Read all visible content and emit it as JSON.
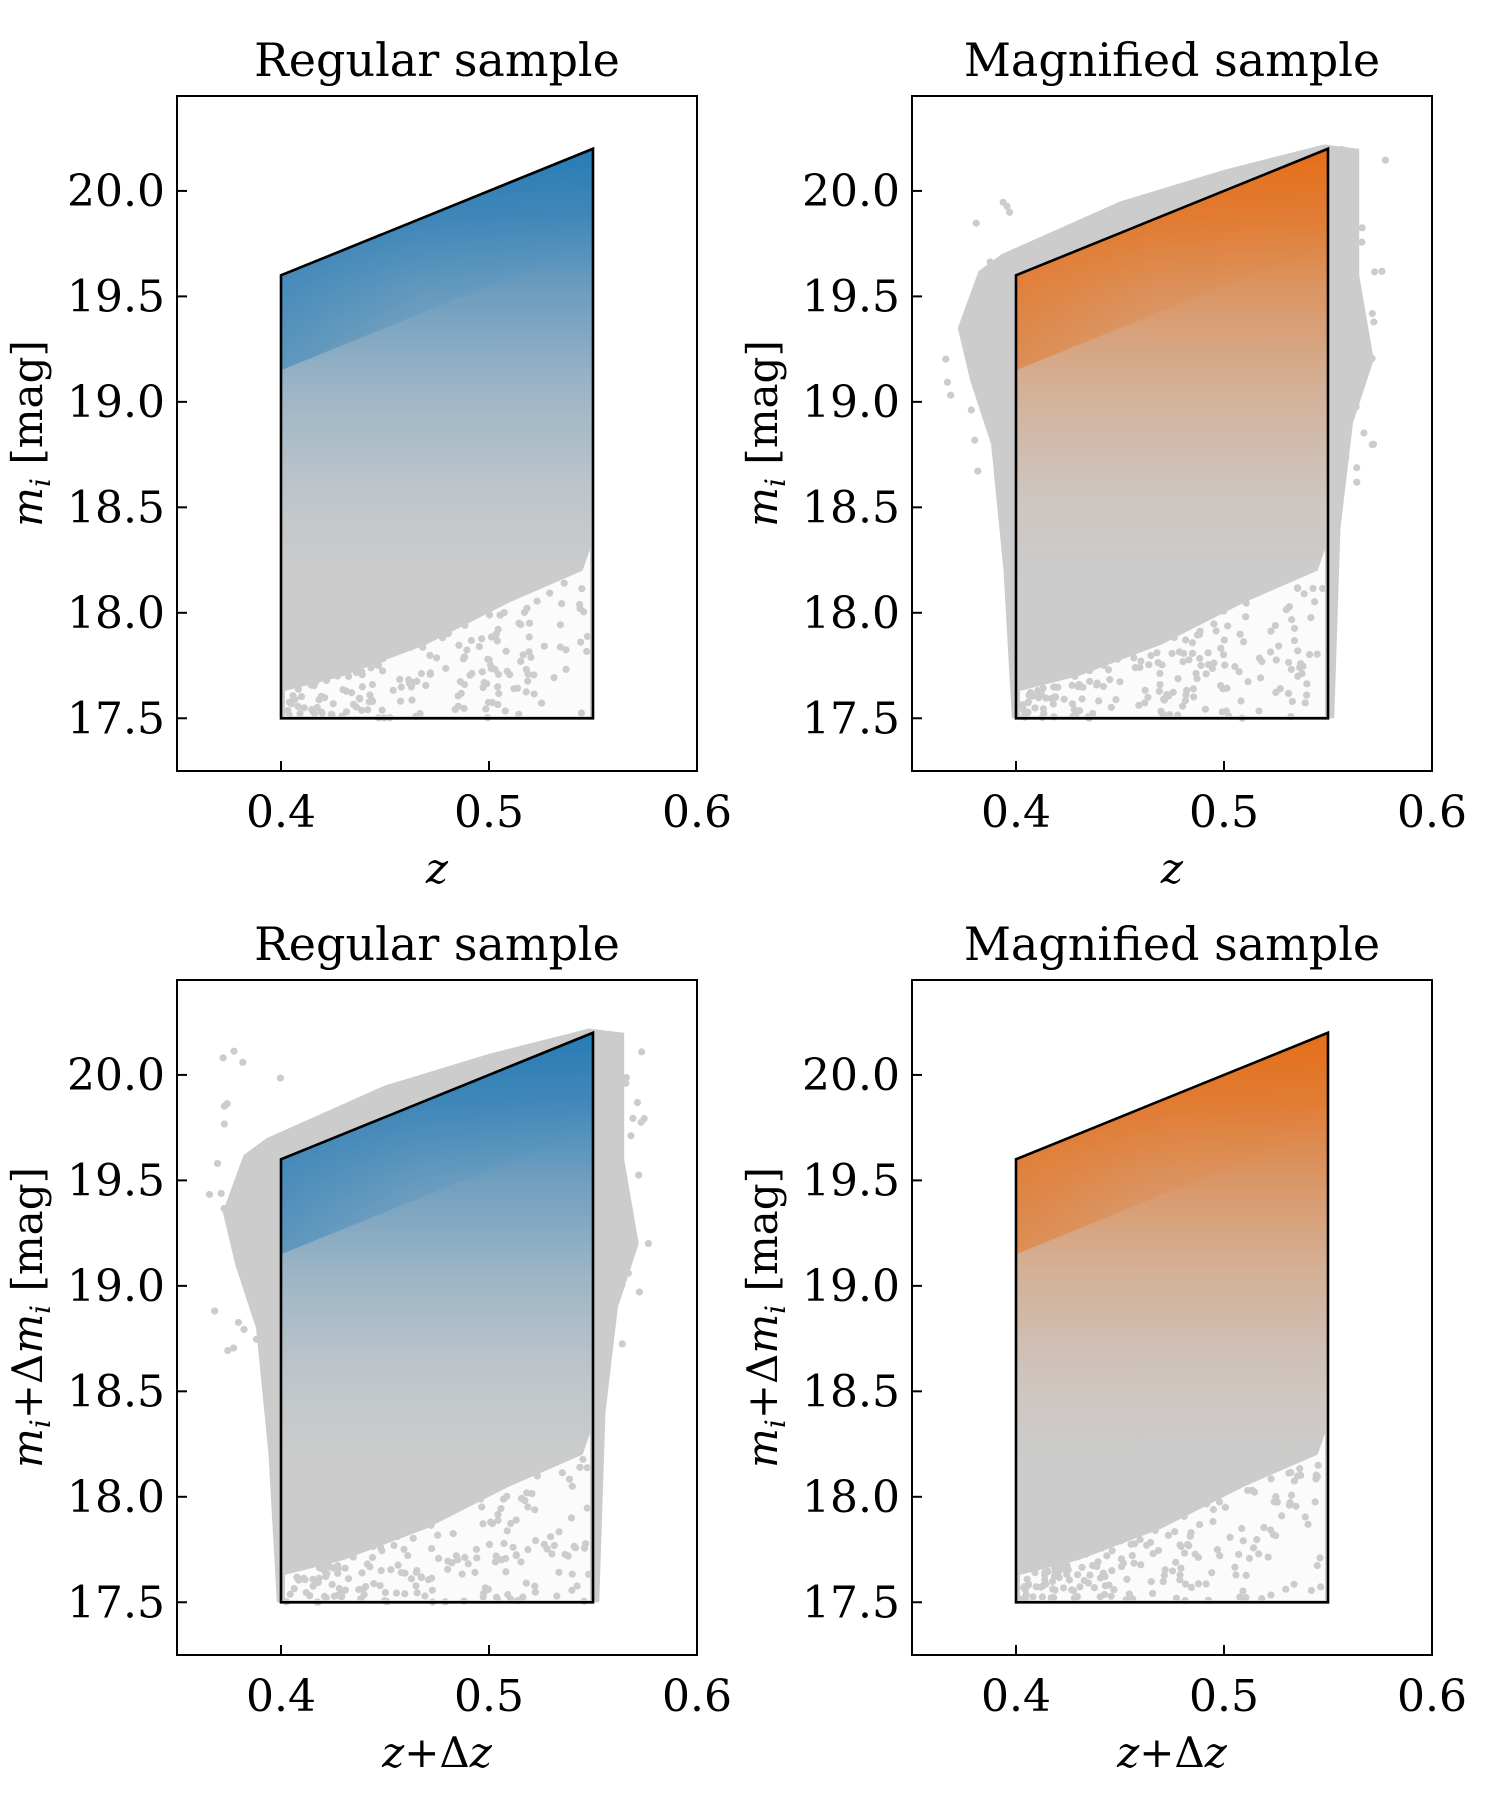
{
  "chart_data": [
    {
      "type": "scatter",
      "title": "Regular sample",
      "xlabel": "z",
      "ylabel": "m_i [mag]",
      "xlabel_parts": {
        "main": "z"
      },
      "ylabel_parts": {
        "var": "m",
        "sub": "i",
        "unit": " [mag]"
      },
      "xlim": [
        0.35,
        0.6
      ],
      "ylim": [
        17.25,
        20.45
      ],
      "xticks": [
        "0.4",
        "0.5",
        "0.6"
      ],
      "xtick_values": [
        0.4,
        0.5,
        0.6
      ],
      "yticks": [
        "17.5",
        "18.0",
        "18.5",
        "19.0",
        "19.5",
        "20.0"
      ],
      "ytick_values": [
        17.5,
        18.0,
        18.5,
        19.0,
        19.5,
        20.0
      ],
      "selection_polygon": [
        [
          0.4,
          17.5
        ],
        [
          0.4,
          19.6
        ],
        [
          0.55,
          20.2
        ],
        [
          0.55,
          17.5
        ]
      ],
      "density_color": "#1f77b4",
      "background_color": "#cccccc",
      "spill": 0.0
    },
    {
      "type": "scatter",
      "title": "Magnified sample",
      "xlabel": "z",
      "ylabel": "m_i [mag]",
      "xlabel_parts": {
        "main": "z"
      },
      "ylabel_parts": {
        "var": "m",
        "sub": "i",
        "unit": " [mag]"
      },
      "xlim": [
        0.35,
        0.6
      ],
      "ylim": [
        17.25,
        20.45
      ],
      "xticks": [
        "0.4",
        "0.5",
        "0.6"
      ],
      "xtick_values": [
        0.4,
        0.5,
        0.6
      ],
      "yticks": [
        "17.5",
        "18.0",
        "18.5",
        "19.0",
        "19.5",
        "20.0"
      ],
      "ytick_values": [
        17.5,
        18.0,
        18.5,
        19.0,
        19.5,
        20.0
      ],
      "selection_polygon": [
        [
          0.4,
          17.5
        ],
        [
          0.4,
          19.6
        ],
        [
          0.55,
          20.2
        ],
        [
          0.55,
          17.5
        ]
      ],
      "density_color": "#e6690f",
      "background_color": "#cccccc",
      "spill": 1.0
    },
    {
      "type": "scatter",
      "title": "Regular sample",
      "xlabel": "z+Δz",
      "ylabel": "m_i+Δm_i [mag]",
      "xlabel_parts": {
        "main": "z",
        "plus": "+Δ",
        "tail": "z"
      },
      "ylabel_parts": {
        "var": "m",
        "sub": "i",
        "plus": "+Δ",
        "var2": "m",
        "sub2": "i",
        "unit": " [mag]"
      },
      "xlim": [
        0.35,
        0.6
      ],
      "ylim": [
        17.25,
        20.45
      ],
      "xticks": [
        "0.4",
        "0.5",
        "0.6"
      ],
      "xtick_values": [
        0.4,
        0.5,
        0.6
      ],
      "yticks": [
        "17.5",
        "18.0",
        "18.5",
        "19.0",
        "19.5",
        "20.0"
      ],
      "ytick_values": [
        17.5,
        18.0,
        18.5,
        19.0,
        19.5,
        20.0
      ],
      "selection_polygon": [
        [
          0.4,
          17.5
        ],
        [
          0.4,
          19.6
        ],
        [
          0.55,
          20.2
        ],
        [
          0.55,
          17.5
        ]
      ],
      "density_color": "#1f77b4",
      "background_color": "#cccccc",
      "spill": 1.0
    },
    {
      "type": "scatter",
      "title": "Magnified sample",
      "xlabel": "z+Δz",
      "ylabel": "m_i+Δm_i [mag]",
      "xlabel_parts": {
        "main": "z",
        "plus": "+Δ",
        "tail": "z"
      },
      "ylabel_parts": {
        "var": "m",
        "sub": "i",
        "plus": "+Δ",
        "var2": "m",
        "sub2": "i",
        "unit": " [mag]"
      },
      "xlim": [
        0.35,
        0.6
      ],
      "ylim": [
        17.25,
        20.45
      ],
      "xticks": [
        "0.4",
        "0.5",
        "0.6"
      ],
      "xtick_values": [
        0.4,
        0.5,
        0.6
      ],
      "yticks": [
        "17.5",
        "18.0",
        "18.5",
        "19.0",
        "19.5",
        "20.0"
      ],
      "ytick_values": [
        17.5,
        18.0,
        18.5,
        19.0,
        19.5,
        20.0
      ],
      "selection_polygon": [
        [
          0.4,
          17.5
        ],
        [
          0.4,
          19.6
        ],
        [
          0.55,
          20.2
        ],
        [
          0.55,
          17.5
        ]
      ],
      "density_color": "#e6690f",
      "background_color": "#cccccc",
      "spill": 0.0
    }
  ]
}
